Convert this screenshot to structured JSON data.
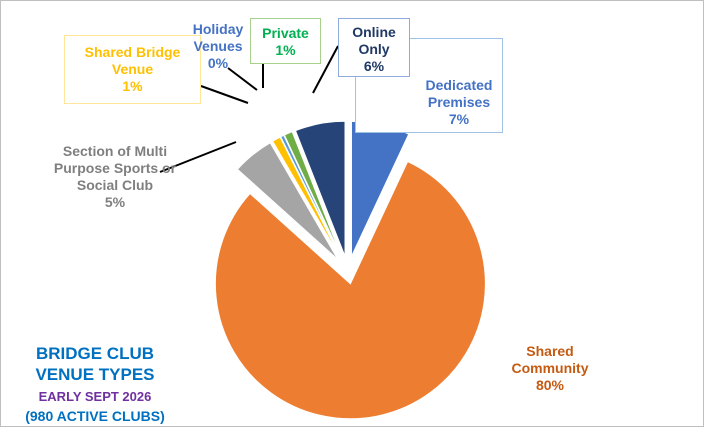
{
  "chart_data": {
    "type": "pie",
    "title": "BRIDGE CLUB VENUE TYPES",
    "subtitle": "EARLY SEPT 2026",
    "note": "(980 ACTIVE CLUBS)",
    "categories": [
      "Dedicated Premises",
      "Shared Community",
      "Section of Multi Purpose Sports or Social Club",
      "Shared Bridge Venue",
      "Holiday Venues",
      "Private",
      "Online Only"
    ],
    "values": [
      7,
      80,
      5,
      1,
      0.4,
      1,
      6
    ],
    "value_labels": [
      "7%",
      "80%",
      "5%",
      "1%",
      "0%",
      "1%",
      "6%"
    ],
    "colors": [
      "#4472c4",
      "#ed7d31",
      "#a5a5a5",
      "#ffc000",
      "#5b9bd5",
      "#70ad47",
      "#264478"
    ],
    "label_colors": [
      "#4472c4",
      "#c55a11",
      "#7f7f7f",
      "#ffc000",
      "#4472c4",
      "#00b050",
      "#1f3864"
    ]
  }
}
